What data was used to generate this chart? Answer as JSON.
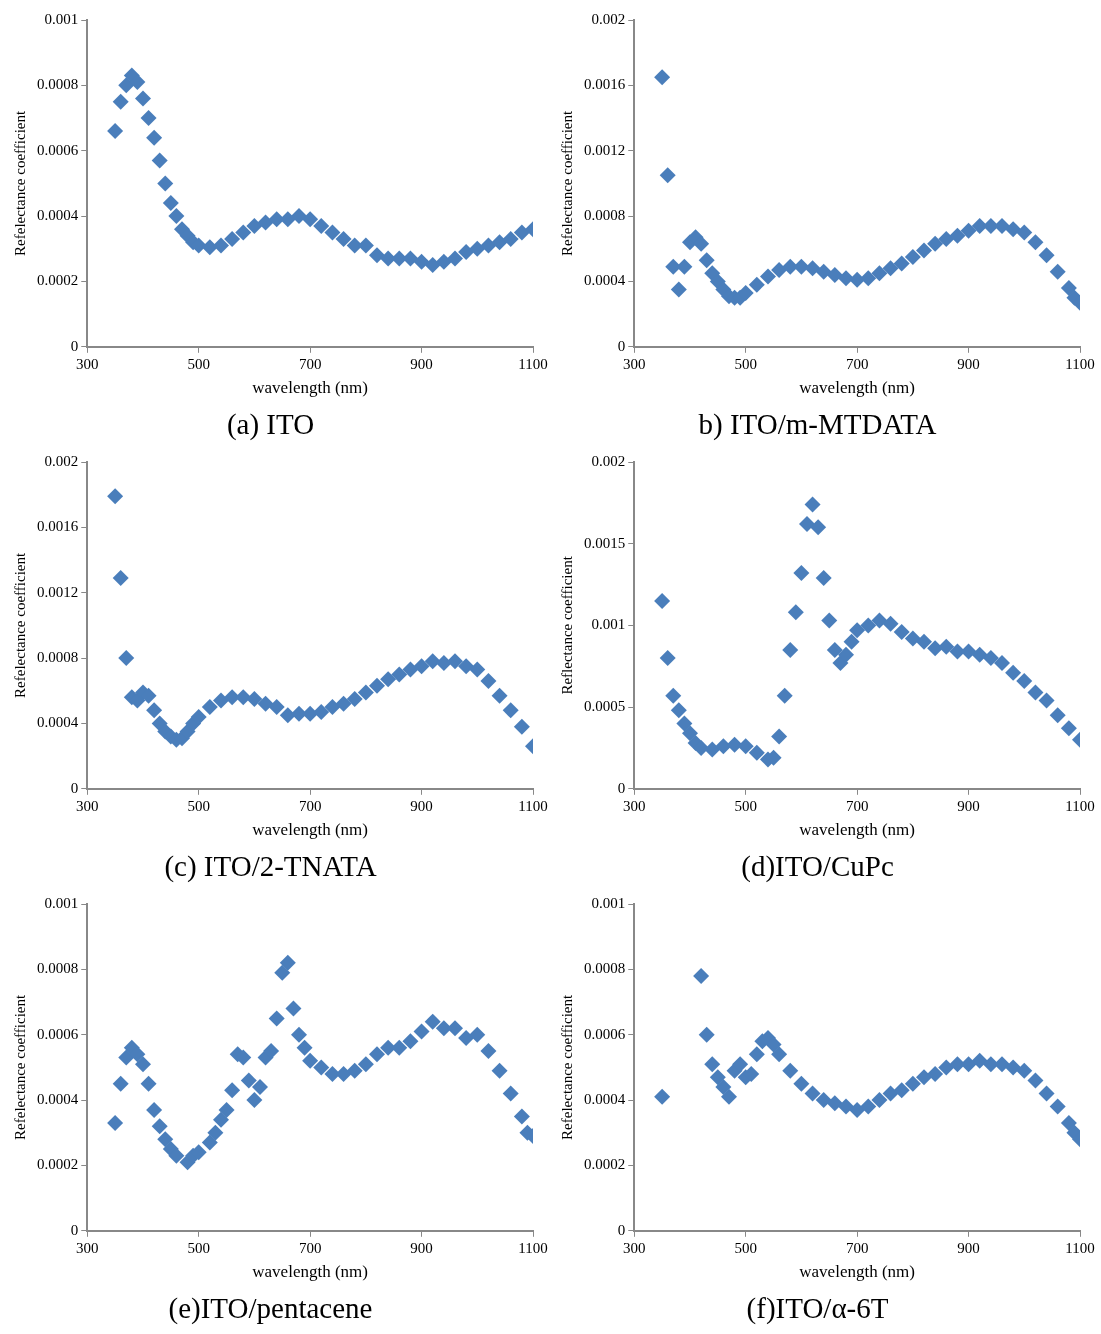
{
  "chart_data": [
    {
      "type": "scatter",
      "title": "(a) ITO",
      "xlabel": "wavelength (nm)",
      "ylabel": "Refelectance coefficient",
      "color": "#4a7ebb",
      "marker": "diamond",
      "xlim": [
        300,
        1100
      ],
      "xticks": [
        300,
        500,
        700,
        900,
        1100
      ],
      "ylim": [
        0,
        0.001
      ],
      "yticks": [
        0,
        0.0002,
        0.0004,
        0.0006,
        0.0008,
        0.001
      ],
      "x": [
        350,
        360,
        370,
        380,
        390,
        400,
        410,
        420,
        430,
        440,
        450,
        460,
        470,
        480,
        490,
        500,
        520,
        540,
        560,
        580,
        600,
        620,
        640,
        660,
        680,
        700,
        720,
        740,
        760,
        780,
        800,
        820,
        840,
        860,
        880,
        900,
        920,
        940,
        960,
        980,
        1000,
        1020,
        1040,
        1060,
        1080,
        1100
      ],
      "values": [
        0.00066,
        0.00075,
        0.0008,
        0.00083,
        0.00081,
        0.00076,
        0.0007,
        0.00064,
        0.00057,
        0.0005,
        0.00044,
        0.0004,
        0.00036,
        0.00034,
        0.00032,
        0.00031,
        0.000305,
        0.00031,
        0.00033,
        0.00035,
        0.00037,
        0.00038,
        0.00039,
        0.00039,
        0.0004,
        0.00039,
        0.00037,
        0.00035,
        0.00033,
        0.00031,
        0.00031,
        0.00028,
        0.00027,
        0.00027,
        0.00027,
        0.00026,
        0.00025,
        0.00026,
        0.00027,
        0.00029,
        0.0003,
        0.00031,
        0.00032,
        0.00033,
        0.00035,
        0.00036
      ]
    },
    {
      "type": "scatter",
      "title": "b) ITO/m-MTDATA",
      "xlabel": "wavelength (nm)",
      "ylabel": "Refelectance coefficient",
      "color": "#4a7ebb",
      "marker": "diamond",
      "xlim": [
        300,
        1100
      ],
      "xticks": [
        300,
        500,
        700,
        900,
        1100
      ],
      "ylim": [
        0,
        0.002
      ],
      "yticks": [
        0,
        0.0004,
        0.0008,
        0.0012,
        0.0016,
        0.002
      ],
      "x": [
        350,
        360,
        370,
        380,
        390,
        400,
        410,
        420,
        430,
        440,
        450,
        460,
        470,
        480,
        490,
        500,
        520,
        540,
        560,
        580,
        600,
        620,
        640,
        660,
        680,
        700,
        720,
        740,
        760,
        780,
        800,
        820,
        840,
        860,
        880,
        900,
        920,
        940,
        960,
        980,
        1000,
        1020,
        1040,
        1060,
        1080,
        1090,
        1100
      ],
      "values": [
        0.00165,
        0.00105,
        0.00049,
        0.00035,
        0.00049,
        0.00064,
        0.00067,
        0.00063,
        0.00053,
        0.00045,
        0.0004,
        0.00035,
        0.00031,
        0.0003,
        0.0003,
        0.00033,
        0.00038,
        0.00043,
        0.00047,
        0.00049,
        0.00049,
        0.00048,
        0.00046,
        0.00044,
        0.00042,
        0.00041,
        0.00042,
        0.00045,
        0.00048,
        0.00051,
        0.00055,
        0.00059,
        0.00063,
        0.00066,
        0.00068,
        0.00071,
        0.00074,
        0.00074,
        0.00074,
        0.00072,
        0.0007,
        0.00064,
        0.00056,
        0.00046,
        0.00036,
        0.0003,
        0.00027
      ]
    },
    {
      "type": "scatter",
      "title": "(c) ITO/2-TNATA",
      "xlabel": "wavelength (nm)",
      "ylabel": "Refelectance coefficient",
      "color": "#4a7ebb",
      "marker": "diamond",
      "xlim": [
        300,
        1100
      ],
      "xticks": [
        300,
        500,
        700,
        900,
        1100
      ],
      "ylim": [
        0,
        0.002
      ],
      "yticks": [
        0,
        0.0004,
        0.0008,
        0.0012,
        0.0016,
        0.002
      ],
      "x": [
        350,
        360,
        370,
        380,
        390,
        400,
        410,
        420,
        430,
        440,
        450,
        460,
        470,
        480,
        490,
        500,
        520,
        540,
        560,
        580,
        600,
        620,
        640,
        660,
        680,
        700,
        720,
        740,
        760,
        780,
        800,
        820,
        840,
        860,
        880,
        900,
        920,
        940,
        960,
        980,
        1000,
        1020,
        1040,
        1060,
        1080,
        1100
      ],
      "values": [
        0.00179,
        0.00129,
        0.0008,
        0.00056,
        0.00054,
        0.00059,
        0.00057,
        0.00048,
        0.0004,
        0.00035,
        0.00032,
        0.0003,
        0.00031,
        0.00035,
        0.0004,
        0.00044,
        0.0005,
        0.00054,
        0.00056,
        0.00056,
        0.00055,
        0.00052,
        0.0005,
        0.00045,
        0.00046,
        0.00046,
        0.00047,
        0.0005,
        0.00052,
        0.00055,
        0.00059,
        0.00063,
        0.00067,
        0.0007,
        0.00073,
        0.00075,
        0.00078,
        0.00077,
        0.00078,
        0.00075,
        0.00073,
        0.00066,
        0.00057,
        0.00048,
        0.00038,
        0.00026
      ]
    },
    {
      "type": "scatter",
      "title": "(d)ITO/CuPc",
      "xlabel": "wavelength (nm)",
      "ylabel": "Reflectance coefficient",
      "color": "#4a7ebb",
      "marker": "diamond",
      "xlim": [
        300,
        1100
      ],
      "xticks": [
        300,
        500,
        700,
        900,
        1100
      ],
      "ylim": [
        0,
        0.002
      ],
      "yticks": [
        0,
        0.0005,
        0.001,
        0.0015,
        0.002
      ],
      "x": [
        350,
        360,
        370,
        380,
        390,
        400,
        410,
        420,
        440,
        460,
        480,
        500,
        520,
        540,
        550,
        560,
        570,
        580,
        590,
        600,
        610,
        620,
        630,
        640,
        650,
        660,
        670,
        680,
        690,
        700,
        720,
        740,
        760,
        780,
        800,
        820,
        840,
        860,
        880,
        900,
        920,
        940,
        960,
        980,
        1000,
        1020,
        1040,
        1060,
        1080,
        1100
      ],
      "values": [
        0.00115,
        0.0008,
        0.00057,
        0.00048,
        0.0004,
        0.00034,
        0.00028,
        0.00025,
        0.00024,
        0.00026,
        0.00027,
        0.00026,
        0.00022,
        0.00018,
        0.00019,
        0.00032,
        0.00057,
        0.00085,
        0.00108,
        0.00132,
        0.00162,
        0.00174,
        0.0016,
        0.00129,
        0.00103,
        0.00085,
        0.00077,
        0.00082,
        0.0009,
        0.00097,
        0.001,
        0.00103,
        0.00101,
        0.00096,
        0.00092,
        0.0009,
        0.00086,
        0.00087,
        0.00084,
        0.00084,
        0.00082,
        0.0008,
        0.00077,
        0.00071,
        0.00066,
        0.00059,
        0.00054,
        0.00045,
        0.00037,
        0.0003
      ]
    },
    {
      "type": "scatter",
      "title": "(e)ITO/pentacene",
      "xlabel": "wavelength (nm)",
      "ylabel": "Refelectance coefficient",
      "color": "#4a7ebb",
      "marker": "diamond",
      "xlim": [
        300,
        1100
      ],
      "xticks": [
        300,
        500,
        700,
        900,
        1100
      ],
      "ylim": [
        0,
        0.001
      ],
      "yticks": [
        0,
        0.0002,
        0.0004,
        0.0006,
        0.0008,
        0.001
      ],
      "x": [
        350,
        360,
        370,
        380,
        390,
        400,
        410,
        420,
        430,
        440,
        450,
        460,
        480,
        490,
        500,
        520,
        530,
        540,
        550,
        560,
        570,
        580,
        590,
        600,
        610,
        620,
        630,
        640,
        650,
        660,
        670,
        680,
        690,
        700,
        720,
        740,
        760,
        780,
        800,
        820,
        840,
        860,
        880,
        900,
        920,
        940,
        960,
        980,
        1000,
        1020,
        1040,
        1060,
        1080,
        1090,
        1100
      ],
      "values": [
        0.00033,
        0.00045,
        0.00053,
        0.00056,
        0.00054,
        0.00051,
        0.00045,
        0.00037,
        0.00032,
        0.00028,
        0.00025,
        0.00023,
        0.00021,
        0.00023,
        0.00024,
        0.00027,
        0.0003,
        0.00034,
        0.00037,
        0.00043,
        0.00054,
        0.00053,
        0.00046,
        0.0004,
        0.00044,
        0.00053,
        0.00055,
        0.00065,
        0.00079,
        0.00082,
        0.00068,
        0.0006,
        0.00056,
        0.00052,
        0.0005,
        0.00048,
        0.00048,
        0.00049,
        0.00051,
        0.00054,
        0.00056,
        0.00056,
        0.00058,
        0.00061,
        0.00064,
        0.00062,
        0.00062,
        0.00059,
        0.0006,
        0.00055,
        0.00049,
        0.00042,
        0.00035,
        0.0003,
        0.00029
      ]
    },
    {
      "type": "scatter",
      "title": "(f)ITO/α-6T",
      "xlabel": "wavelength (nm)",
      "ylabel": "Refelectance coefficient",
      "color": "#4a7ebb",
      "marker": "diamond",
      "xlim": [
        300,
        1100
      ],
      "xticks": [
        300,
        500,
        700,
        900,
        1100
      ],
      "ylim": [
        0,
        0.001
      ],
      "yticks": [
        0,
        0.0002,
        0.0004,
        0.0006,
        0.0008,
        0.001
      ],
      "x": [
        350,
        420,
        430,
        440,
        450,
        460,
        470,
        480,
        490,
        500,
        510,
        520,
        530,
        540,
        550,
        560,
        580,
        600,
        620,
        640,
        660,
        680,
        700,
        720,
        740,
        760,
        780,
        800,
        820,
        840,
        860,
        880,
        900,
        920,
        940,
        960,
        980,
        1000,
        1020,
        1040,
        1060,
        1080,
        1090,
        1100
      ],
      "values": [
        0.00041,
        0.00078,
        0.0006,
        0.00051,
        0.00047,
        0.00044,
        0.00041,
        0.00049,
        0.00051,
        0.00047,
        0.00048,
        0.00054,
        0.00058,
        0.00059,
        0.00057,
        0.00054,
        0.00049,
        0.00045,
        0.00042,
        0.0004,
        0.00039,
        0.00038,
        0.00037,
        0.00038,
        0.0004,
        0.00042,
        0.00043,
        0.00045,
        0.00047,
        0.00048,
        0.0005,
        0.00051,
        0.00051,
        0.00052,
        0.00051,
        0.00051,
        0.0005,
        0.00049,
        0.00046,
        0.00042,
        0.00038,
        0.00033,
        0.0003,
        0.00028
      ]
    }
  ]
}
